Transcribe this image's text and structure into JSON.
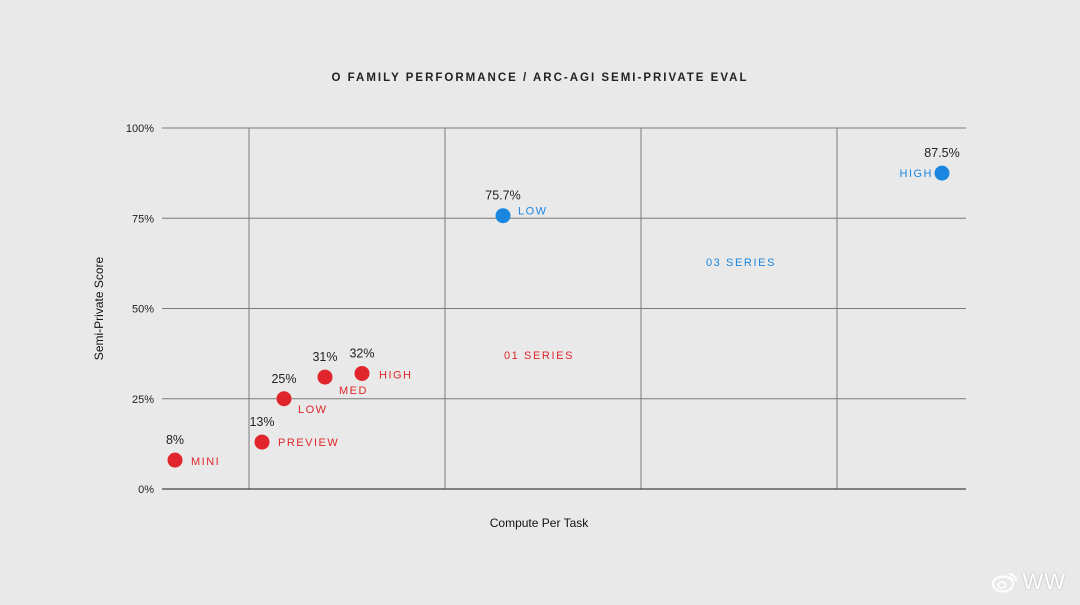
{
  "chart_data": {
    "type": "scatter",
    "title": "O FAMILY PERFORMANCE / ARC-AGI SEMI-PRIVATE EVAL",
    "xlabel": "Compute Per Task",
    "ylabel": "Semi-Private Score",
    "ylim": [
      0,
      100
    ],
    "yticks": [
      {
        "value": 0,
        "label": "0%"
      },
      {
        "value": 25,
        "label": "25%"
      },
      {
        "value": 50,
        "label": "50%"
      },
      {
        "value": 75,
        "label": "75%"
      },
      {
        "value": 100,
        "label": "100%"
      }
    ],
    "grid": true,
    "series": [
      {
        "color": "#e0262c",
        "points": [
          {
            "label": "MINI",
            "y": 8,
            "value_label": "8%"
          },
          {
            "label": "PREVIEW",
            "y": 13,
            "value_label": "13%"
          },
          {
            "label": "LOW",
            "y": 25,
            "value_label": "25%"
          },
          {
            "label": "MED",
            "y": 31,
            "value_label": "31%"
          },
          {
            "label": "HIGH",
            "y": 32,
            "value_label": "32%"
          }
        ]
      },
      {
        "color": "#1a86e0",
        "points": [
          {
            "label": "LOW",
            "y": 75.7,
            "value_label": "75.7%"
          },
          {
            "label": "HIGH",
            "y": 87.5,
            "value_label": "87.5%"
          }
        ]
      }
    ],
    "annotations": [
      {
        "text": "01 SERIES",
        "color": "#e0262c"
      },
      {
        "text": "03 SERIES",
        "color": "#1a86e0"
      }
    ]
  },
  "watermark": {
    "text": "WW"
  }
}
